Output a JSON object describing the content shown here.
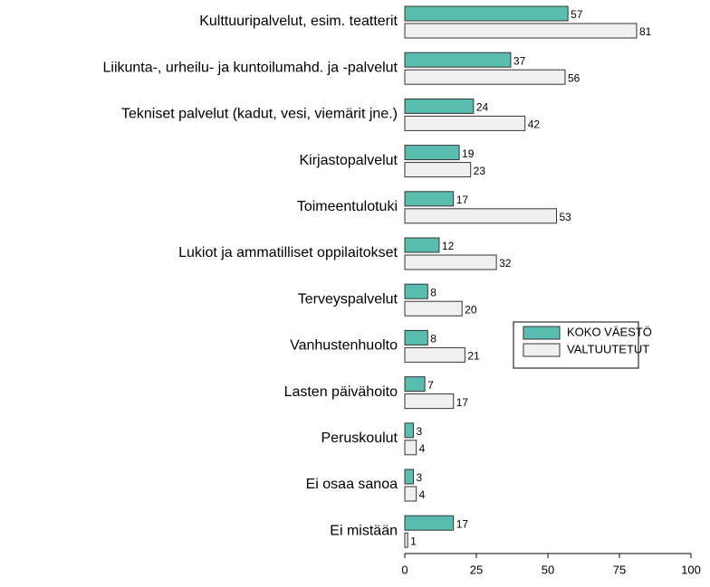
{
  "chart_data": {
    "type": "bar",
    "orientation": "horizontal",
    "categories": [
      "Kulttuuripalvelut, esim. teatterit",
      "Liikunta-, urheilu- ja kuntoilumahd. ja -palvelut",
      "Tekniset palvelut (kadut, vesi, viemärit jne.)",
      "Kirjastopalvelut",
      "Toimeentulotuki",
      "Lukiot ja ammatilliset oppilaitokset",
      "Terveyspalvelut",
      "Vanhustenhuolto",
      "Lasten päivähoito",
      "Peruskoulut",
      "Ei osaa sanoa",
      "Ei mistään"
    ],
    "series": [
      {
        "name": "KOKO VÄESTÖ",
        "color": "#5bbcb0",
        "values": [
          57,
          37,
          24,
          19,
          17,
          12,
          8,
          8,
          7,
          3,
          3,
          17
        ]
      },
      {
        "name": "VALTUUTETUT",
        "color": "#f0f0f0",
        "values": [
          81,
          56,
          42,
          23,
          53,
          32,
          20,
          21,
          17,
          4,
          4,
          1
        ]
      }
    ],
    "xlim": [
      0,
      100
    ],
    "xticks": [
      0,
      25,
      50,
      75,
      100
    ],
    "legend": "right"
  }
}
